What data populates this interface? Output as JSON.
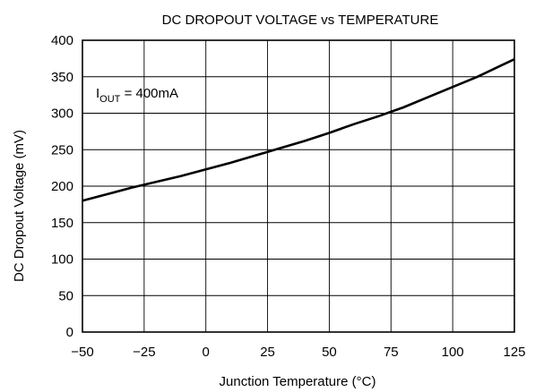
{
  "chart_data": {
    "type": "line",
    "title": "DC DROPOUT VOLTAGE vs TEMPERATURE",
    "xlabel": "Junction Temperature (°C)",
    "ylabel": "DC Dropout Voltage (mV)",
    "xlim": [
      -50,
      125
    ],
    "ylim": [
      0,
      400
    ],
    "xticks": [
      -50,
      -25,
      0,
      25,
      50,
      75,
      100,
      125
    ],
    "xtick_labels": [
      "−50",
      "−25",
      "0",
      "25",
      "50",
      "75",
      "100",
      "125"
    ],
    "yticks": [
      0,
      50,
      100,
      150,
      200,
      250,
      300,
      350,
      400
    ],
    "grid": true,
    "annotation": {
      "main": "I",
      "sub": "OUT",
      "rest": " = 400mA"
    },
    "series": [
      {
        "x": [
          -50,
          -40,
          -30,
          -25,
          -20,
          -10,
          0,
          10,
          20,
          25,
          30,
          40,
          50,
          60,
          70,
          75,
          80,
          90,
          100,
          110,
          120,
          125
        ],
        "y": [
          180,
          189,
          198,
          202,
          206,
          214,
          223,
          232,
          242,
          247,
          252,
          262,
          273,
          285,
          296,
          302,
          308,
          322,
          336,
          350,
          366,
          374
        ]
      }
    ]
  }
}
